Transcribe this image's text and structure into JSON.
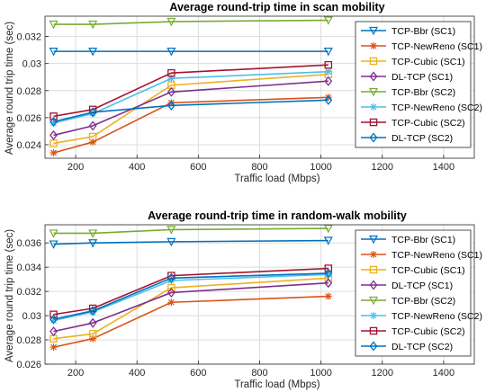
{
  "chart_data": [
    {
      "type": "line",
      "title": "Average round-trip time in scan mobility",
      "xlabel": "Traffic load (Mbps)",
      "ylabel": "Average round trip time (sec)",
      "xlim": [
        100,
        1500
      ],
      "ylim": [
        0.023,
        0.0335
      ],
      "xticks": [
        200,
        400,
        600,
        800,
        1000,
        1200,
        1400
      ],
      "yticks": [
        0.024,
        0.026,
        0.028,
        0.03,
        0.032
      ],
      "ytick_labels": [
        "0.024",
        "0.026",
        "0.028",
        "0.03",
        "0.032"
      ],
      "grid": true,
      "legend_position": "top-right",
      "x": [
        128,
        256,
        512,
        1024
      ],
      "series": [
        {
          "name": "TCP-Bbr (SC1)",
          "color": "#0072BD",
          "marker": "triangle-down",
          "values": [
            0.0309,
            0.0309,
            0.0309,
            0.0309
          ]
        },
        {
          "name": "TCP-NewReno (SC1)",
          "color": "#D95319",
          "marker": "asterisk",
          "values": [
            0.0234,
            0.0242,
            0.0271,
            0.0275
          ]
        },
        {
          "name": "TCP-Cubic (SC1)",
          "color": "#EDB120",
          "marker": "square",
          "values": [
            0.0241,
            0.0246,
            0.0284,
            0.0292
          ]
        },
        {
          "name": "DL-TCP (SC1)",
          "color": "#7E2F8E",
          "marker": "diamond",
          "values": [
            0.0247,
            0.0254,
            0.0279,
            0.0287
          ]
        },
        {
          "name": "TCP-Bbr (SC2)",
          "color": "#77AC30",
          "marker": "triangle-down",
          "values": [
            0.0329,
            0.0329,
            0.0331,
            0.0332
          ]
        },
        {
          "name": "TCP-NewReno (SC2)",
          "color": "#4DBEEE",
          "marker": "asterisk",
          "values": [
            0.0256,
            0.0263,
            0.0289,
            0.0294
          ]
        },
        {
          "name": "TCP-Cubic (SC2)",
          "color": "#A2142F",
          "marker": "square",
          "values": [
            0.0261,
            0.0266,
            0.0293,
            0.0299
          ]
        },
        {
          "name": "DL-TCP (SC2)",
          "color": "#0072BD",
          "marker": "diamond",
          "values": [
            0.0257,
            0.0264,
            0.0269,
            0.0273
          ]
        }
      ]
    },
    {
      "type": "line",
      "title": "Average round-trip time in random-walk mobility",
      "xlabel": "Traffic load (Mbps)",
      "ylabel": "Average round trip time (sec)",
      "xlim": [
        100,
        1500
      ],
      "ylim": [
        0.026,
        0.0375
      ],
      "xticks": [
        200,
        400,
        600,
        800,
        1000,
        1200,
        1400
      ],
      "yticks": [
        0.026,
        0.028,
        0.03,
        0.032,
        0.034,
        0.036
      ],
      "ytick_labels": [
        "0.026",
        "0.028",
        "0.03",
        "0.032",
        "0.034",
        "0.036"
      ],
      "grid": true,
      "legend_position": "top-right",
      "x": [
        128,
        256,
        512,
        1024
      ],
      "series": [
        {
          "name": "TCP-Bbr (SC1)",
          "color": "#0072BD",
          "marker": "triangle-down",
          "values": [
            0.0359,
            0.036,
            0.0361,
            0.0362
          ]
        },
        {
          "name": "TCP-NewReno (SC1)",
          "color": "#D95319",
          "marker": "asterisk",
          "values": [
            0.0274,
            0.0281,
            0.0311,
            0.0316
          ]
        },
        {
          "name": "TCP-Cubic (SC1)",
          "color": "#EDB120",
          "marker": "square",
          "values": [
            0.0281,
            0.0285,
            0.0323,
            0.0331
          ]
        },
        {
          "name": "DL-TCP (SC1)",
          "color": "#7E2F8E",
          "marker": "diamond",
          "values": [
            0.0287,
            0.0294,
            0.0319,
            0.0327
          ]
        },
        {
          "name": "TCP-Bbr (SC2)",
          "color": "#77AC30",
          "marker": "triangle-down",
          "values": [
            0.0368,
            0.0368,
            0.0371,
            0.0372
          ]
        },
        {
          "name": "TCP-NewReno (SC2)",
          "color": "#4DBEEE",
          "marker": "asterisk",
          "values": [
            0.0296,
            0.0303,
            0.0329,
            0.0334
          ]
        },
        {
          "name": "TCP-Cubic (SC2)",
          "color": "#A2142F",
          "marker": "square",
          "values": [
            0.0301,
            0.0306,
            0.0333,
            0.0339
          ]
        },
        {
          "name": "DL-TCP (SC2)",
          "color": "#0072BD",
          "marker": "diamond",
          "values": [
            0.0297,
            0.0304,
            0.0331,
            0.0335
          ]
        }
      ]
    }
  ]
}
